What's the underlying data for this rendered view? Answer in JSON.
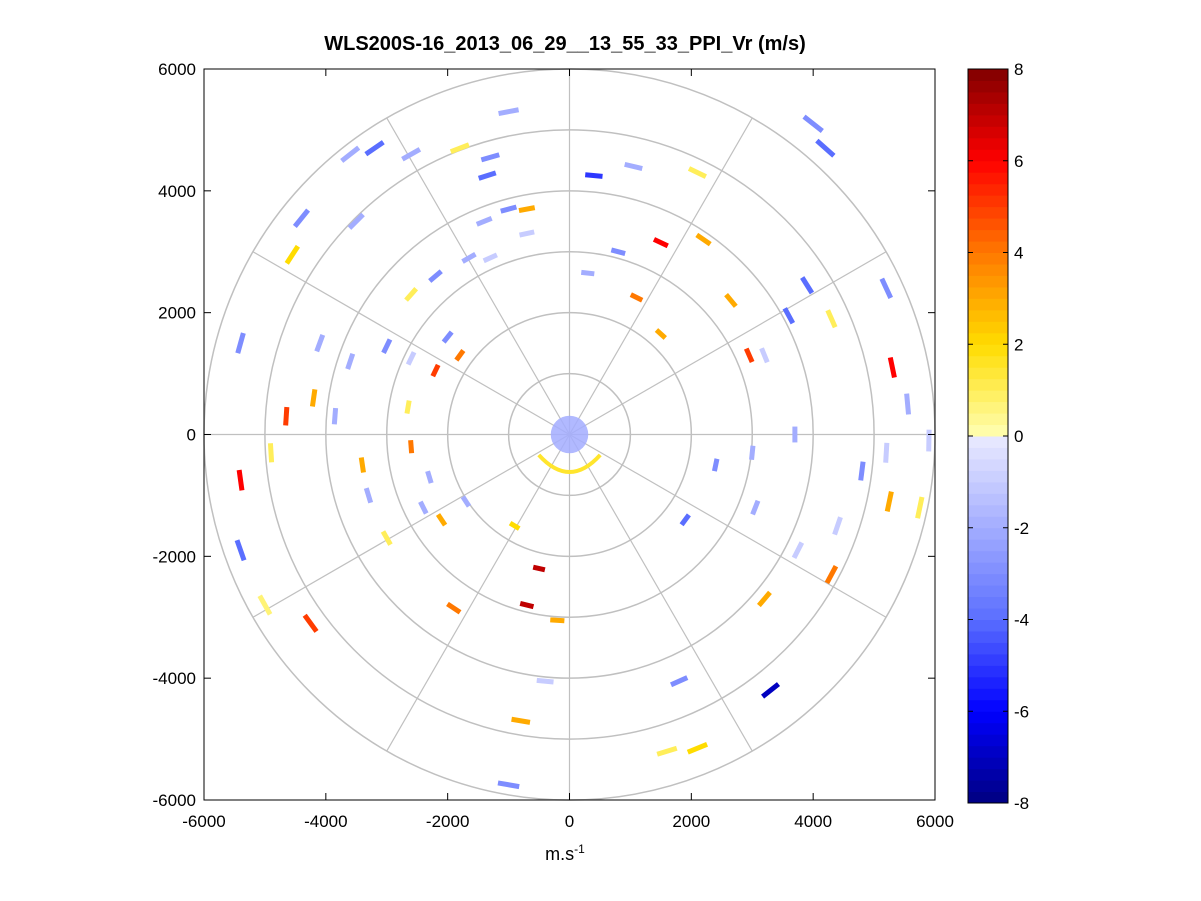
{
  "chart_data": {
    "type": "polar-ppi-scatter",
    "title": "WLS200S-16_2013_06_29__13_55_33_PPI_Vr (m/s)",
    "xlabel": {
      "base": "m.s",
      "sup": "-1"
    },
    "ylabel": "",
    "xlim": [
      -6000,
      6000
    ],
    "ylim": [
      -6000,
      6000
    ],
    "xticks": [
      -6000,
      -4000,
      -2000,
      0,
      2000,
      4000,
      6000
    ],
    "yticks": [
      6000,
      4000,
      2000,
      0,
      -2000,
      -4000,
      -6000
    ],
    "xtick_labels": [
      "-6000",
      "-4000",
      "-2000",
      "0",
      "2000",
      "4000",
      "6000"
    ],
    "ytick_labels": [
      "6000",
      "4000",
      "2000",
      "0",
      "-2000",
      "-4000",
      "-6000"
    ],
    "range_rings_m": [
      1000,
      2000,
      3000,
      4000,
      5000,
      6000
    ],
    "spoke_angles_deg": [
      0,
      30,
      60,
      90,
      120,
      150,
      180,
      210,
      240,
      270,
      300,
      330
    ],
    "colorbar": {
      "min": -8,
      "max": 8,
      "ticks": [
        8,
        6,
        4,
        2,
        0,
        -2,
        -4,
        -6,
        -8
      ],
      "tick_labels": [
        "8",
        "6",
        "4",
        "2",
        "0",
        "-2",
        "-4",
        "-6",
        "-8"
      ],
      "levels": 64
    },
    "colors": {
      "grid": "#c0c0c0",
      "axis": "#000000",
      "background": "#ffffff"
    },
    "series": [
      {
        "name": "radial velocity (m/s)",
        "points": [
          {
            "x": 400,
            "y": 4250,
            "v": -5
          },
          {
            "x": 1050,
            "y": 4400,
            "v": -2
          },
          {
            "x": 1500,
            "y": 3150,
            "v": 6
          },
          {
            "x": 2100,
            "y": 4300,
            "v": 1
          },
          {
            "x": 2200,
            "y": 3200,
            "v": 3
          },
          {
            "x": 2650,
            "y": 2200,
            "v": 3
          },
          {
            "x": 2950,
            "y": 1300,
            "v": 5
          },
          {
            "x": 3200,
            "y": 1300,
            "v": -1
          },
          {
            "x": 3600,
            "y": 1950,
            "v": -4
          },
          {
            "x": 3900,
            "y": 2450,
            "v": -4
          },
          {
            "x": 4300,
            "y": 1900,
            "v": 1
          },
          {
            "x": 4000,
            "y": 5100,
            "v": -3
          },
          {
            "x": 4200,
            "y": 4700,
            "v": -4
          },
          {
            "x": 5200,
            "y": 2400,
            "v": -3
          },
          {
            "x": 5300,
            "y": 1100,
            "v": 6
          },
          {
            "x": 5550,
            "y": 500,
            "v": -2
          },
          {
            "x": 5900,
            "y": -100,
            "v": -1
          },
          {
            "x": 5200,
            "y": -300,
            "v": -1
          },
          {
            "x": 5250,
            "y": -1100,
            "v": 3
          },
          {
            "x": 5750,
            "y": -1200,
            "v": 1
          },
          {
            "x": 4800,
            "y": -600,
            "v": -3
          },
          {
            "x": 4400,
            "y": -1500,
            "v": -1
          },
          {
            "x": 4300,
            "y": -2300,
            "v": 4
          },
          {
            "x": 3750,
            "y": -1900,
            "v": -1
          },
          {
            "x": 3200,
            "y": -2700,
            "v": 3
          },
          {
            "x": 3050,
            "y": -1200,
            "v": -2
          },
          {
            "x": 3000,
            "y": -300,
            "v": -2
          },
          {
            "x": 3700,
            "y": 0,
            "v": -2
          },
          {
            "x": 2400,
            "y": -500,
            "v": -3
          },
          {
            "x": 1900,
            "y": -1400,
            "v": -4
          },
          {
            "x": 1800,
            "y": -4050,
            "v": -3
          },
          {
            "x": 3300,
            "y": -4200,
            "v": -7
          },
          {
            "x": 2100,
            "y": -5150,
            "v": 2
          },
          {
            "x": 1600,
            "y": -5200,
            "v": 1
          },
          {
            "x": -400,
            "y": -4050,
            "v": -1
          },
          {
            "x": -800,
            "y": -4700,
            "v": 3
          },
          {
            "x": -1000,
            "y": -5750,
            "v": -3
          },
          {
            "x": -700,
            "y": -2800,
            "v": 7
          },
          {
            "x": -500,
            "y": -2200,
            "v": 7
          },
          {
            "x": -200,
            "y": -3050,
            "v": 3
          },
          {
            "x": -1900,
            "y": -2850,
            "v": 4
          },
          {
            "x": -2400,
            "y": -1200,
            "v": -2
          },
          {
            "x": -3000,
            "y": -1700,
            "v": 1
          },
          {
            "x": -3300,
            "y": -1000,
            "v": -2
          },
          {
            "x": -3400,
            "y": -500,
            "v": 3
          },
          {
            "x": -4250,
            "y": -3100,
            "v": 5
          },
          {
            "x": -5000,
            "y": -2800,
            "v": 0.7
          },
          {
            "x": -5400,
            "y": -1900,
            "v": -4
          },
          {
            "x": -5400,
            "y": -750,
            "v": 6
          },
          {
            "x": -4900,
            "y": -300,
            "v": 1
          },
          {
            "x": -4650,
            "y": 300,
            "v": 5
          },
          {
            "x": -4200,
            "y": 600,
            "v": 3
          },
          {
            "x": -3850,
            "y": 300,
            "v": -2
          },
          {
            "x": -5400,
            "y": 1500,
            "v": -3
          },
          {
            "x": -3600,
            "y": 1200,
            "v": -2
          },
          {
            "x": -3000,
            "y": 1450,
            "v": -3
          },
          {
            "x": -4100,
            "y": 1500,
            "v": -2
          },
          {
            "x": -2600,
            "y": 1250,
            "v": -1
          },
          {
            "x": -2600,
            "y": 2300,
            "v": 1
          },
          {
            "x": -4550,
            "y": 2950,
            "v": 2
          },
          {
            "x": -3500,
            "y": 3500,
            "v": -2
          },
          {
            "x": -4400,
            "y": 3550,
            "v": -3
          },
          {
            "x": -3200,
            "y": 4700,
            "v": -4
          },
          {
            "x": -3600,
            "y": 4600,
            "v": -2
          },
          {
            "x": -2600,
            "y": 4600,
            "v": -2
          },
          {
            "x": -1800,
            "y": 4700,
            "v": 1
          },
          {
            "x": -1300,
            "y": 4550,
            "v": -3
          },
          {
            "x": -1350,
            "y": 4250,
            "v": -4
          },
          {
            "x": -1000,
            "y": 5300,
            "v": -2
          },
          {
            "x": -1400,
            "y": 3500,
            "v": -2
          },
          {
            "x": -1000,
            "y": 3700,
            "v": -3
          },
          {
            "x": -700,
            "y": 3700,
            "v": 3
          },
          {
            "x": -700,
            "y": 3300,
            "v": -1
          },
          {
            "x": -2200,
            "y": 2600,
            "v": -3
          },
          {
            "x": -1650,
            "y": 2900,
            "v": -2
          },
          {
            "x": -1300,
            "y": 2900,
            "v": -1
          },
          {
            "x": -2000,
            "y": 1600,
            "v": -3
          },
          {
            "x": -1800,
            "y": 1300,
            "v": 4
          },
          {
            "x": -2200,
            "y": 1050,
            "v": 5
          },
          {
            "x": -2650,
            "y": 450,
            "v": 1
          },
          {
            "x": -2600,
            "y": -200,
            "v": 4
          },
          {
            "x": -2300,
            "y": -700,
            "v": -2
          },
          {
            "x": -2100,
            "y": -1400,
            "v": 3
          },
          {
            "x": -1700,
            "y": -1100,
            "v": -2
          },
          {
            "x": -900,
            "y": -1500,
            "v": 2
          },
          {
            "x": 800,
            "y": 3000,
            "v": -3
          },
          {
            "x": 300,
            "y": 2650,
            "v": -2
          },
          {
            "x": 1100,
            "y": 2250,
            "v": 4
          },
          {
            "x": 1500,
            "y": 1650,
            "v": 3
          }
        ]
      }
    ]
  }
}
